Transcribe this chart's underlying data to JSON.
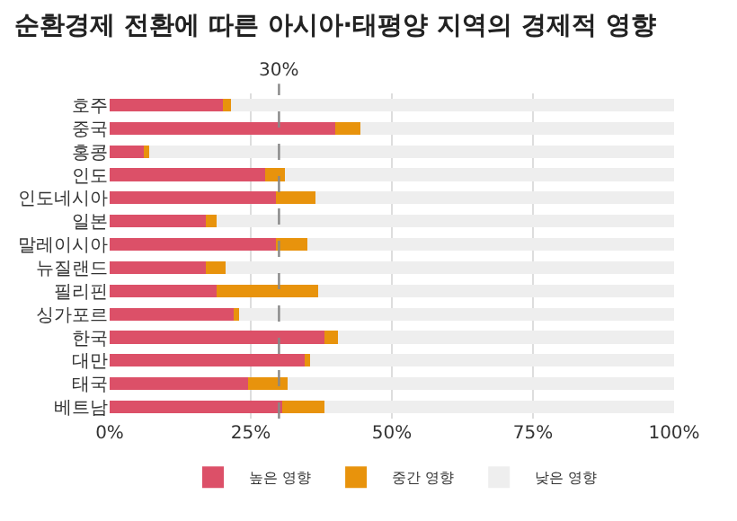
{
  "chart_data": {
    "type": "bar",
    "orientation": "horizontal",
    "stacked": true,
    "title": "순환경제 전환에 따른 아시아·태평양 지역의 경제적 영향",
    "categories": [
      "호주",
      "중국",
      "홍콩",
      "인도",
      "인도네시아",
      "일본",
      "말레이시아",
      "뉴질랜드",
      "필리핀",
      "싱가포르",
      "한국",
      "대만",
      "태국",
      "베트남"
    ],
    "series": [
      {
        "name": "높은 영향",
        "color": "#dc5068",
        "values": [
          20,
          40,
          6,
          27.5,
          29.5,
          17,
          29.5,
          17,
          19,
          22,
          38,
          34.5,
          24.5,
          30.5
        ]
      },
      {
        "name": "중간 영향",
        "color": "#e8930c",
        "values": [
          1.5,
          4.5,
          1,
          3.5,
          7,
          2,
          5.5,
          3.5,
          18,
          1,
          2.5,
          1,
          7,
          7.5
        ]
      },
      {
        "name": "낮은 영향",
        "color": "#eeeeee",
        "values": [
          78.5,
          55.5,
          93,
          69,
          63.5,
          81,
          65,
          79.5,
          63,
          77,
          59.5,
          64.5,
          68.5,
          62
        ]
      }
    ],
    "xlim": [
      0,
      100
    ],
    "xticks": [
      {
        "value": 0,
        "label": "0%"
      },
      {
        "value": 25,
        "label": "25%"
      },
      {
        "value": 50,
        "label": "50%"
      },
      {
        "value": 75,
        "label": "75%"
      },
      {
        "value": 100,
        "label": "100%"
      }
    ],
    "grid": "x",
    "legend": "bottom",
    "ref_lines": [
      {
        "axis": "x",
        "value": 30,
        "label": "30%",
        "color": "#888888",
        "line_style": "dashed"
      }
    ]
  }
}
